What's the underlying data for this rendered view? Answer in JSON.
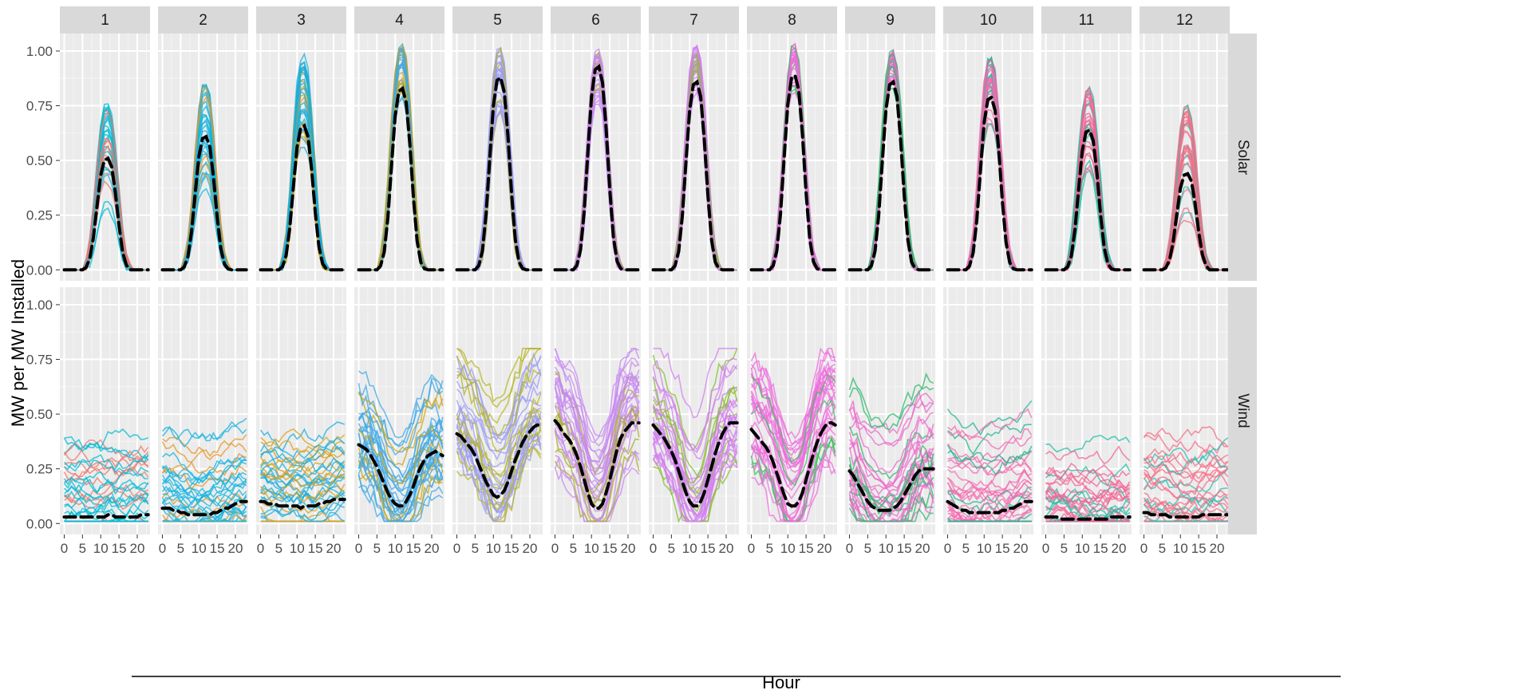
{
  "chart_data": {
    "type": "line",
    "facet_columns": [
      "1",
      "2",
      "3",
      "4",
      "5",
      "6",
      "7",
      "8",
      "9",
      "10",
      "11",
      "12"
    ],
    "facet_rows": [
      "Solar",
      "Wind"
    ],
    "xlabel": "Hour",
    "ylabel": "MW per MW Installed",
    "x_ticks": [
      0,
      5,
      10,
      15,
      20
    ],
    "x_tick_labels": [
      "0",
      "5",
      "10",
      "15",
      "20"
    ],
    "y_ticks": [
      0,
      0.25,
      0.5,
      0.75,
      1.0
    ],
    "y_tick_labels": [
      "0.00",
      "0.25",
      "0.50",
      "0.75",
      "1.00"
    ],
    "xlim": [
      -1.2,
      23.5
    ],
    "ylim": [
      -0.05,
      1.08
    ],
    "grid": true,
    "legend": "none",
    "mean_line_style": "black dashed",
    "month_colors": [
      "#F8766D",
      "#E58700",
      "#C99800",
      "#00BADE",
      "#8494FF",
      "#A3A500",
      "#6BB100",
      "#00C0AF",
      "#E76BF3",
      "#FF67A4",
      "#00A9FF",
      "#FD61D1"
    ],
    "solar_mean_peak": [
      0.51,
      0.61,
      0.66,
      0.83,
      0.88,
      0.93,
      0.86,
      0.89,
      0.86,
      0.79,
      0.64,
      0.44
    ],
    "solar_ensemble_peak_range": [
      [
        0.18,
        0.77
      ],
      [
        0.25,
        0.88
      ],
      [
        0.3,
        0.99
      ],
      [
        0.67,
        1.03
      ],
      [
        0.65,
        1.02
      ],
      [
        0.72,
        1.02
      ],
      [
        0.75,
        1.03
      ],
      [
        0.78,
        1.03
      ],
      [
        0.8,
        1.0
      ],
      [
        0.6,
        0.98
      ],
      [
        0.38,
        0.83
      ],
      [
        0.15,
        0.77
      ]
    ],
    "wind_mean_profile": [
      [
        0.03,
        0.03,
        0.03,
        0.03,
        0.03,
        0.03,
        0.03,
        0.03,
        0.03,
        0.03,
        0.03,
        0.03,
        0.04,
        0.04,
        0.03,
        0.03,
        0.03,
        0.03,
        0.03,
        0.03,
        0.03,
        0.04,
        0.04,
        0.04
      ],
      [
        0.07,
        0.07,
        0.07,
        0.06,
        0.06,
        0.05,
        0.05,
        0.04,
        0.04,
        0.04,
        0.04,
        0.04,
        0.04,
        0.04,
        0.05,
        0.05,
        0.06,
        0.07,
        0.07,
        0.08,
        0.09,
        0.1,
        0.1,
        0.1
      ],
      [
        0.1,
        0.1,
        0.09,
        0.09,
        0.09,
        0.08,
        0.08,
        0.08,
        0.08,
        0.08,
        0.08,
        0.07,
        0.08,
        0.08,
        0.08,
        0.08,
        0.09,
        0.09,
        0.1,
        0.1,
        0.11,
        0.11,
        0.11,
        0.11
      ],
      [
        0.36,
        0.35,
        0.34,
        0.32,
        0.29,
        0.26,
        0.22,
        0.18,
        0.14,
        0.11,
        0.09,
        0.08,
        0.08,
        0.1,
        0.13,
        0.17,
        0.22,
        0.26,
        0.29,
        0.31,
        0.32,
        0.33,
        0.32,
        0.31
      ],
      [
        0.41,
        0.4,
        0.38,
        0.36,
        0.34,
        0.31,
        0.27,
        0.23,
        0.19,
        0.16,
        0.13,
        0.12,
        0.13,
        0.15,
        0.19,
        0.24,
        0.29,
        0.33,
        0.37,
        0.4,
        0.42,
        0.44,
        0.45,
        0.45
      ],
      [
        0.47,
        0.45,
        0.42,
        0.4,
        0.38,
        0.35,
        0.31,
        0.26,
        0.2,
        0.14,
        0.09,
        0.07,
        0.07,
        0.09,
        0.14,
        0.2,
        0.27,
        0.34,
        0.39,
        0.42,
        0.44,
        0.46,
        0.46,
        0.46
      ],
      [
        0.45,
        0.43,
        0.41,
        0.39,
        0.36,
        0.33,
        0.29,
        0.24,
        0.19,
        0.14,
        0.1,
        0.08,
        0.08,
        0.1,
        0.14,
        0.2,
        0.26,
        0.32,
        0.37,
        0.41,
        0.44,
        0.46,
        0.46,
        0.46
      ],
      [
        0.43,
        0.41,
        0.39,
        0.37,
        0.35,
        0.32,
        0.28,
        0.23,
        0.18,
        0.13,
        0.09,
        0.08,
        0.08,
        0.1,
        0.14,
        0.2,
        0.26,
        0.32,
        0.37,
        0.41,
        0.44,
        0.46,
        0.46,
        0.45
      ],
      [
        0.24,
        0.22,
        0.19,
        0.16,
        0.13,
        0.1,
        0.08,
        0.07,
        0.06,
        0.06,
        0.06,
        0.06,
        0.07,
        0.08,
        0.1,
        0.13,
        0.16,
        0.19,
        0.22,
        0.24,
        0.25,
        0.25,
        0.25,
        0.25
      ],
      [
        0.1,
        0.09,
        0.08,
        0.07,
        0.06,
        0.06,
        0.05,
        0.05,
        0.05,
        0.05,
        0.05,
        0.05,
        0.05,
        0.05,
        0.05,
        0.06,
        0.06,
        0.07,
        0.07,
        0.08,
        0.09,
        0.1,
        0.1,
        0.1
      ],
      [
        0.03,
        0.03,
        0.03,
        0.03,
        0.02,
        0.02,
        0.02,
        0.02,
        0.02,
        0.02,
        0.02,
        0.02,
        0.02,
        0.02,
        0.02,
        0.02,
        0.02,
        0.02,
        0.03,
        0.03,
        0.03,
        0.03,
        0.03,
        0.03
      ],
      [
        0.05,
        0.05,
        0.04,
        0.04,
        0.04,
        0.04,
        0.04,
        0.03,
        0.03,
        0.03,
        0.03,
        0.03,
        0.03,
        0.03,
        0.03,
        0.03,
        0.04,
        0.04,
        0.04,
        0.04,
        0.04,
        0.04,
        0.04,
        0.04
      ]
    ]
  }
}
